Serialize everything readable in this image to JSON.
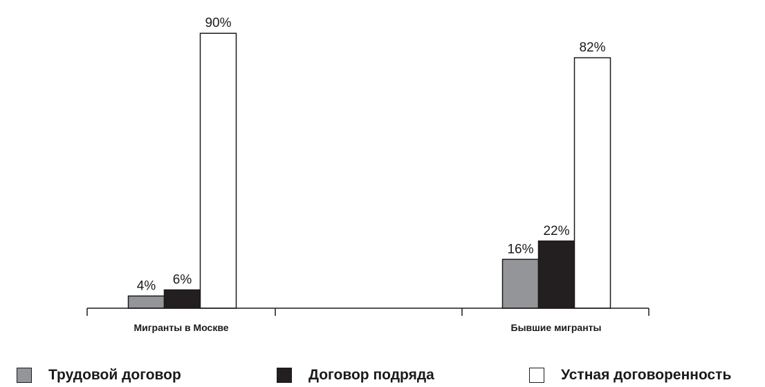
{
  "chart_data": {
    "type": "bar",
    "categories": [
      "Мигранты в Москве",
      "Бывшие мигранты"
    ],
    "series": [
      {
        "name": "Трудовой договор",
        "values": [
          4,
          16
        ],
        "labels": [
          "4%",
          "16%"
        ],
        "color": "#939598"
      },
      {
        "name": "Договор подряда",
        "values": [
          6,
          22
        ],
        "labels": [
          "6%",
          "22%"
        ],
        "color": "#231f20"
      },
      {
        "name": "Устная договоренность",
        "values": [
          90,
          82
        ],
        "labels": [
          "90%",
          "82%"
        ],
        "color": "#ffffff"
      }
    ],
    "ylim": [
      0,
      100
    ],
    "grid": false,
    "legend_placement": "bottom",
    "title": "",
    "xlabel": "",
    "ylabel": ""
  },
  "legend": {
    "items": [
      {
        "label": "Трудовой договор",
        "color": "#939598"
      },
      {
        "label": "Договор подряда",
        "color": "#231f20"
      },
      {
        "label": "Устная договоренность",
        "color": "#ffffff"
      }
    ]
  }
}
